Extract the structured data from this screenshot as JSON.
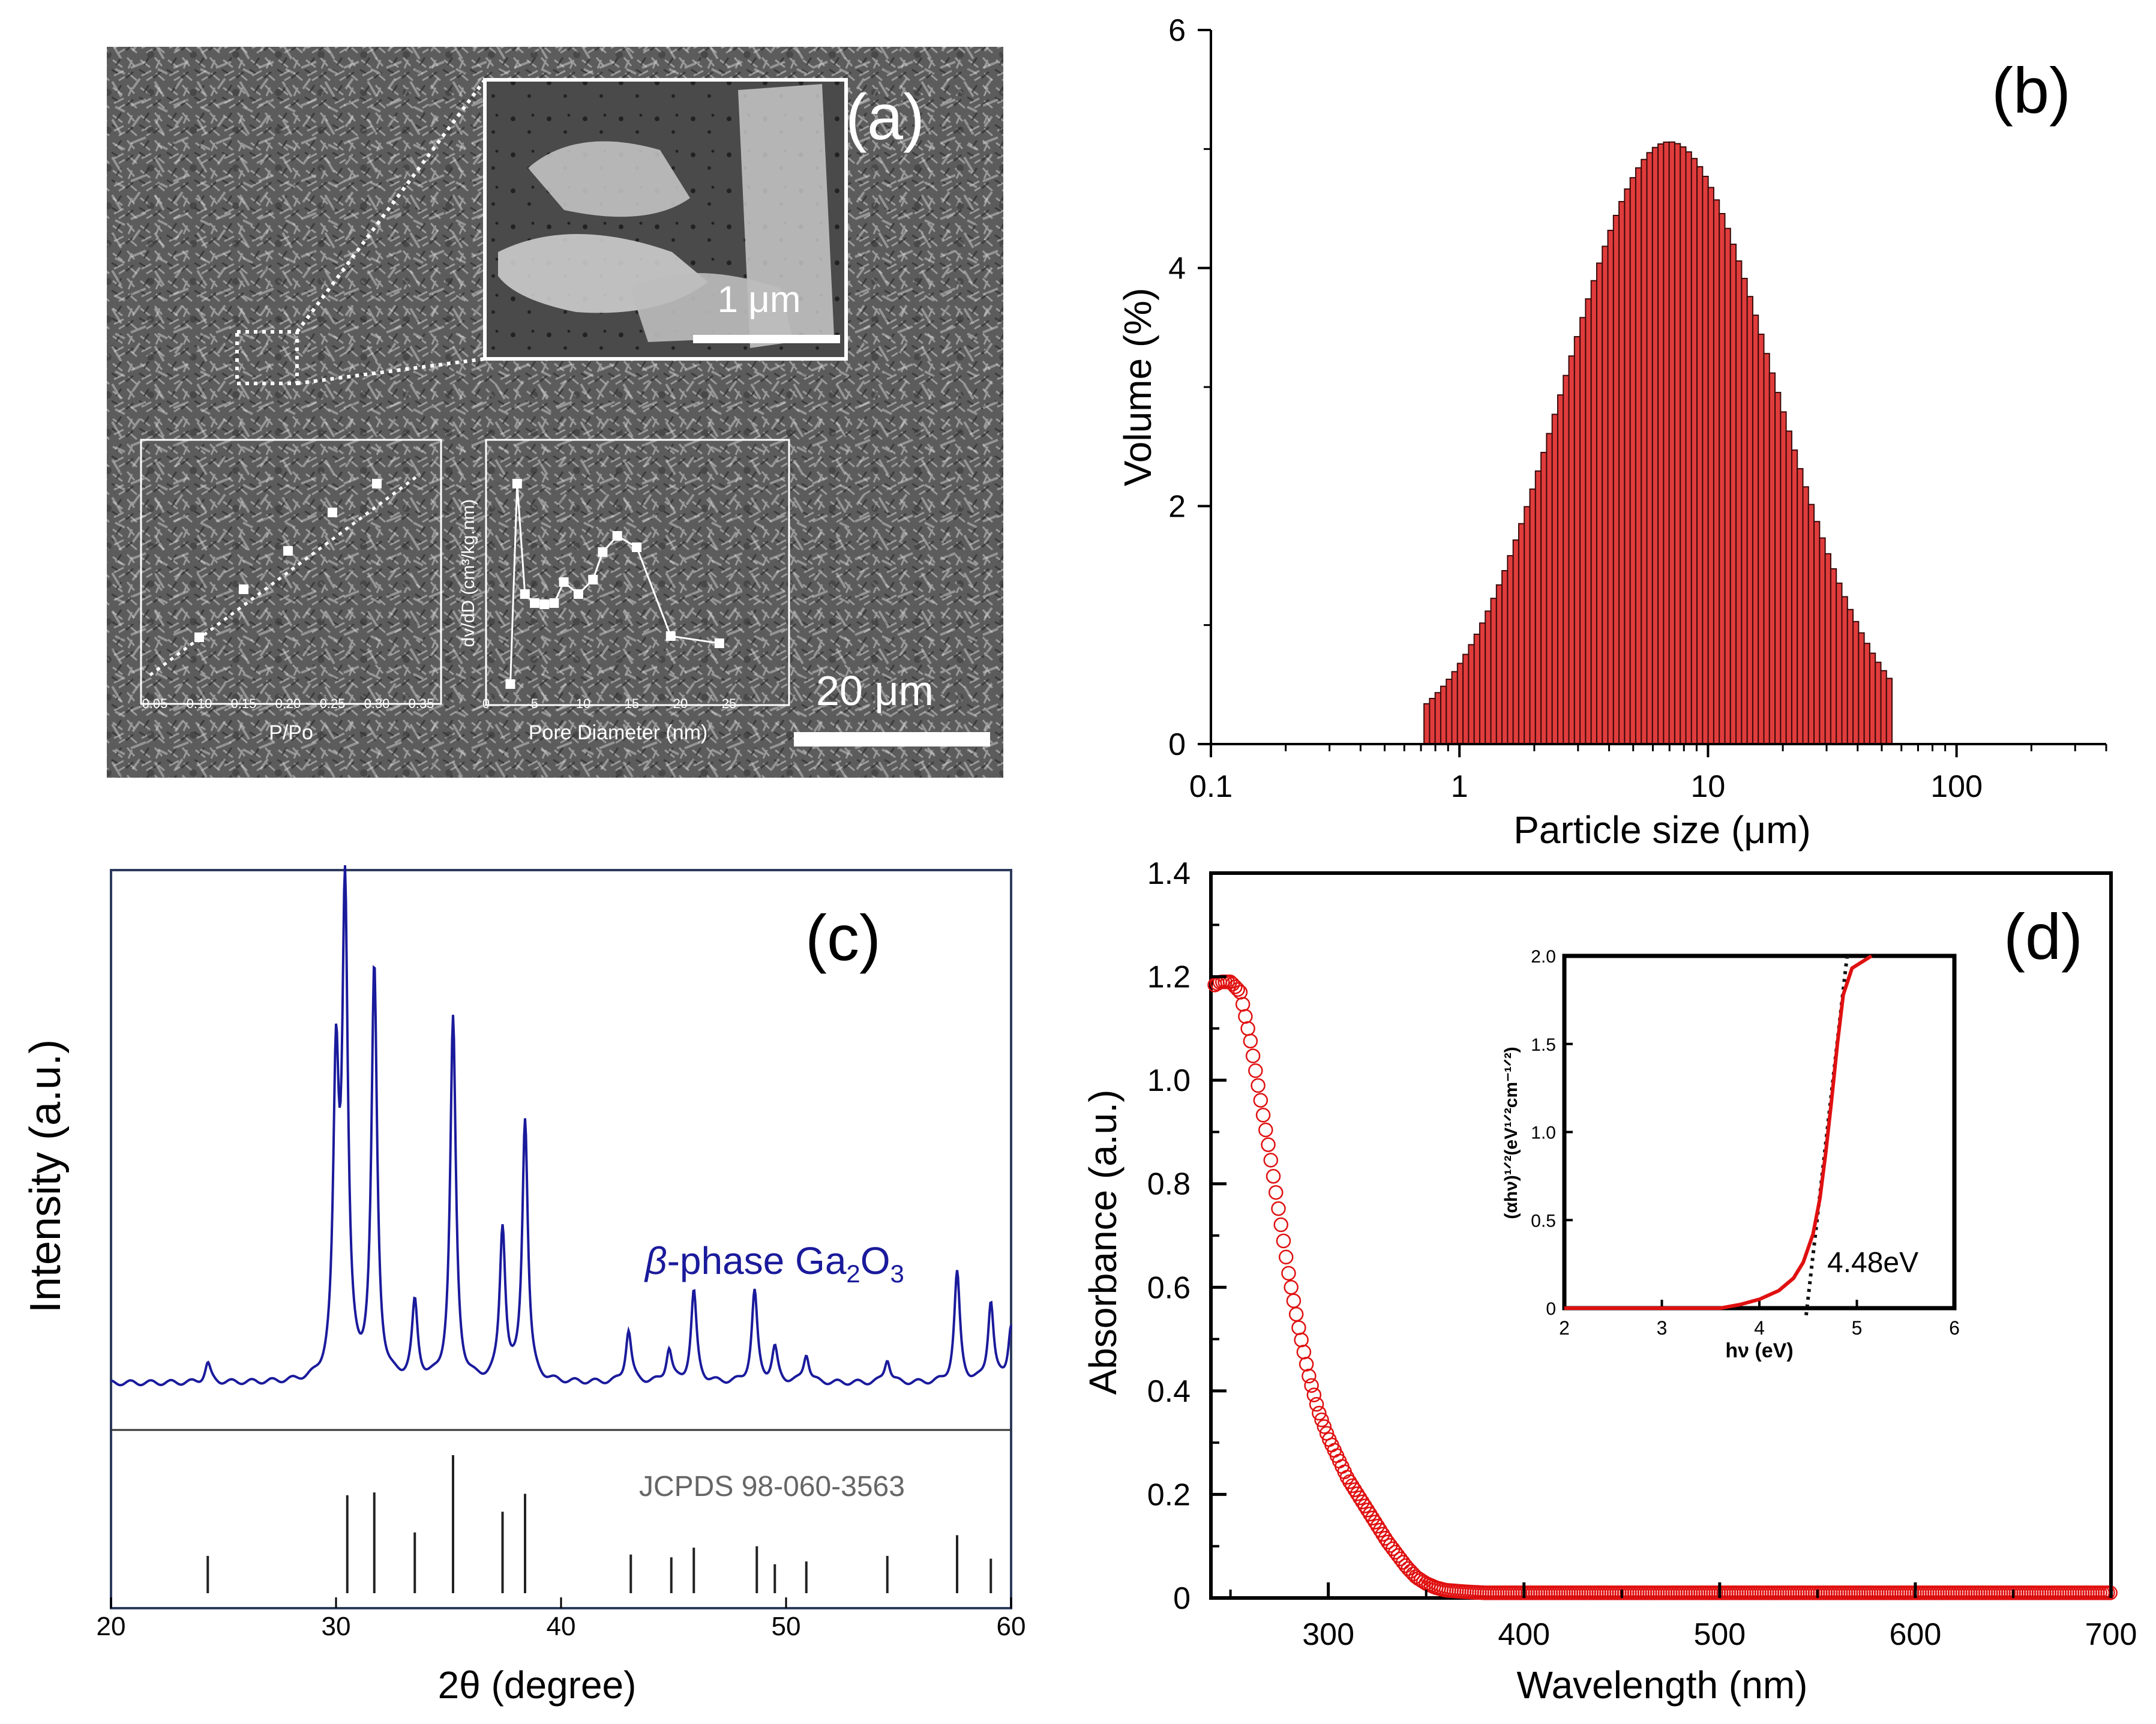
{
  "figure": {
    "panel_labels": [
      "(a)",
      "(b)",
      "(c)",
      "(d)"
    ]
  },
  "panel_a": {
    "inset_scale": "1 μm",
    "main_scale": "20 μm",
    "bet": {
      "xlabel": "P/Po",
      "xticks": [
        "0.05",
        "0.10",
        "0.15",
        "0.20",
        "0.25",
        "0.30",
        "0.35"
      ]
    },
    "pore": {
      "xlabel": "Pore Diameter (nm)",
      "ylabel": "dv/dD (cm³/kg.nm)",
      "xticks": [
        "0",
        "5",
        "10",
        "15",
        "20",
        "25"
      ]
    }
  },
  "chart_data": [
    {
      "id": "b",
      "type": "bar",
      "title": "",
      "xlabel": "Particle size (μm)",
      "ylabel": "Volume (%)",
      "xscale": "log",
      "xlim": [
        0.1,
        400
      ],
      "ylim": [
        0,
        6
      ],
      "xticks": [
        "0.1",
        "1",
        "10",
        "100"
      ],
      "yticks": [
        "0",
        "2",
        "4",
        "6"
      ],
      "distribution": {
        "center_um": 7.0,
        "peak_pct": 5.06,
        "min_um": 0.72,
        "max_um": 55,
        "bins": 84,
        "shape": "log-normal"
      }
    },
    {
      "id": "c",
      "type": "line",
      "xlabel": "2θ (degree)",
      "ylabel": "Intensity (a.u.)",
      "xlim": [
        20,
        60
      ],
      "xticks": [
        "20",
        "30",
        "40",
        "50",
        "60"
      ],
      "series_label": "β-phase Ga₂O₃",
      "series_color": "#1a1a9c",
      "reference": "JCPDS 98-060-3563",
      "peaks": [
        [
          24.3,
          0.04
        ],
        [
          30.0,
          0.62
        ],
        [
          30.4,
          1.0
        ],
        [
          31.7,
          0.86
        ],
        [
          33.5,
          0.16
        ],
        [
          35.2,
          0.76
        ],
        [
          37.4,
          0.32
        ],
        [
          38.4,
          0.55
        ],
        [
          43.0,
          0.11
        ],
        [
          44.8,
          0.07
        ],
        [
          45.9,
          0.19
        ],
        [
          48.6,
          0.19
        ],
        [
          49.5,
          0.07
        ],
        [
          50.9,
          0.06
        ],
        [
          54.5,
          0.05
        ],
        [
          57.6,
          0.23
        ],
        [
          59.1,
          0.17
        ],
        [
          60.0,
          0.12
        ]
      ],
      "reference_lines": [
        [
          24.3,
          0.27
        ],
        [
          30.5,
          0.71
        ],
        [
          31.7,
          0.73
        ],
        [
          33.5,
          0.44
        ],
        [
          35.2,
          1.0
        ],
        [
          37.4,
          0.59
        ],
        [
          38.4,
          0.72
        ],
        [
          43.1,
          0.28
        ],
        [
          44.9,
          0.26
        ],
        [
          45.9,
          0.33
        ],
        [
          48.7,
          0.34
        ],
        [
          49.5,
          0.21
        ],
        [
          50.9,
          0.23
        ],
        [
          54.5,
          0.27
        ],
        [
          57.6,
          0.42
        ],
        [
          59.1,
          0.25
        ]
      ]
    },
    {
      "id": "d",
      "type": "scatter",
      "xlabel": "Wavelength (nm)",
      "ylabel": "Absorbance (a.u.)",
      "xlim": [
        240,
        700
      ],
      "ylim": [
        0,
        1.4
      ],
      "xticks": [
        "300",
        "400",
        "500",
        "600",
        "700"
      ],
      "yticks": [
        "0",
        "0.2",
        "0.4",
        "0.6",
        "0.8",
        "1.0",
        "1.2",
        "1.4"
      ],
      "series_color": "#e01010",
      "curve": [
        [
          240,
          1.18
        ],
        [
          245,
          1.19
        ],
        [
          250,
          1.19
        ],
        [
          255,
          1.17
        ],
        [
          260,
          1.08
        ],
        [
          265,
          0.97
        ],
        [
          270,
          0.86
        ],
        [
          275,
          0.74
        ],
        [
          280,
          0.62
        ],
        [
          285,
          0.52
        ],
        [
          290,
          0.43
        ],
        [
          295,
          0.36
        ],
        [
          300,
          0.31
        ],
        [
          305,
          0.27
        ],
        [
          310,
          0.23
        ],
        [
          315,
          0.2
        ],
        [
          320,
          0.17
        ],
        [
          325,
          0.14
        ],
        [
          330,
          0.11
        ],
        [
          335,
          0.085
        ],
        [
          340,
          0.06
        ],
        [
          345,
          0.04
        ],
        [
          350,
          0.028
        ],
        [
          355,
          0.02
        ],
        [
          360,
          0.015
        ],
        [
          370,
          0.012
        ],
        [
          380,
          0.01
        ],
        [
          700,
          0.01
        ]
      ]
    },
    {
      "id": "d_inset",
      "type": "line",
      "xlabel": "hν (eV)",
      "ylabel": "(αhν)¹ᐟ²(eV¹ᐟ²cm⁻¹ᐟ²)",
      "xlim": [
        2,
        6
      ],
      "ylim": [
        0,
        2.0
      ],
      "xticks": [
        "2",
        "3",
        "4",
        "5",
        "6"
      ],
      "yticks": [
        "0",
        "0.5",
        "1.0",
        "1.5",
        "2.0"
      ],
      "bandgap_label": "4.48eV",
      "bandgap_eV": 4.48,
      "curve": [
        [
          2.0,
          0.0
        ],
        [
          3.6,
          0.0
        ],
        [
          3.8,
          0.02
        ],
        [
          4.0,
          0.05
        ],
        [
          4.2,
          0.1
        ],
        [
          4.35,
          0.17
        ],
        [
          4.45,
          0.26
        ],
        [
          4.55,
          0.42
        ],
        [
          4.62,
          0.62
        ],
        [
          4.68,
          0.88
        ],
        [
          4.74,
          1.18
        ],
        [
          4.8,
          1.5
        ],
        [
          4.86,
          1.78
        ],
        [
          4.95,
          1.93
        ],
        [
          5.15,
          2.0
        ]
      ],
      "tangent": [
        [
          4.48,
          -0.05
        ],
        [
          4.9,
          2.0
        ]
      ]
    }
  ]
}
